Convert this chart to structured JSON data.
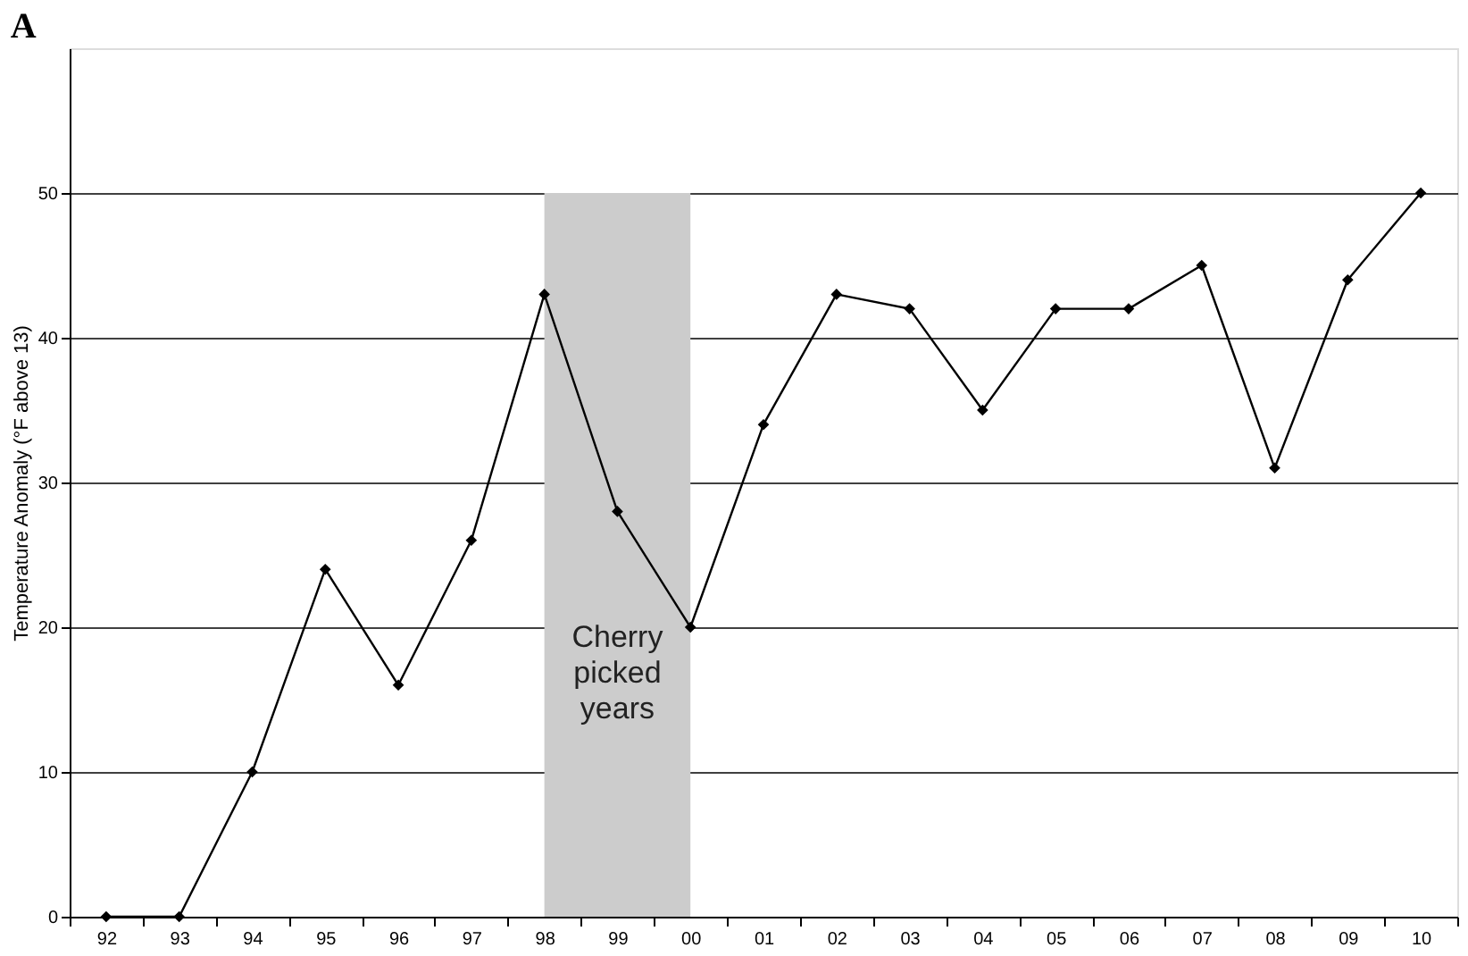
{
  "chart_data": {
    "type": "line",
    "title": "A",
    "ylabel": "Temperature Anomaly (°F above 13)",
    "categories": [
      "92",
      "93",
      "94",
      "95",
      "96",
      "97",
      "98",
      "99",
      "00",
      "01",
      "02",
      "03",
      "04",
      "05",
      "06",
      "07",
      "08",
      "09",
      "10"
    ],
    "series": [
      {
        "color": "#000000",
        "values": [
          0,
          0,
          10,
          24,
          16,
          26,
          43,
          28,
          20,
          34,
          43,
          42,
          35,
          42,
          42,
          45,
          31,
          44,
          50
        ]
      }
    ],
    "ylim": [
      0,
      60
    ],
    "yticks": [
      0,
      10,
      20,
      30,
      40,
      50
    ],
    "grid": "y",
    "marker": "diamond",
    "line_style": "solid",
    "bands": [
      {
        "axis": "x",
        "from": "98",
        "to": "00",
        "label": "Cherry picked years",
        "color": "#cccccc"
      }
    ]
  }
}
